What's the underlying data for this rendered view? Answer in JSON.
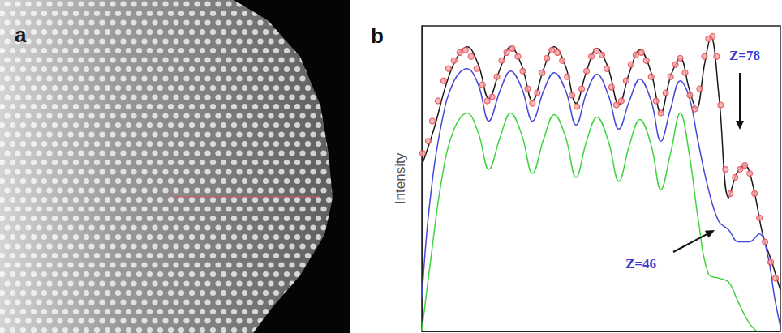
{
  "image_panel": {
    "label": "a"
  },
  "chart_data": {
    "type": "line",
    "title": "b",
    "y_label": "Intensity",
    "xlim": [
      0,
      444
    ],
    "ylim": [
      0,
      379
    ],
    "xticks": [],
    "yticks": [],
    "tick_labels": false,
    "grid": false,
    "annotations": [
      {
        "text": "Z=78"
      },
      {
        "text": "Z=46"
      }
    ],
    "series": [
      {
        "type": "line",
        "color": "#1a1a1a",
        "marker": "none",
        "line_style": "solid",
        "x": [
          0,
          15,
          30,
          43,
          56,
          70,
          83,
          97,
          110,
          124,
          137,
          151,
          164,
          178,
          191,
          204,
          217,
          231,
          244,
          257,
          270,
          284,
          296,
          308,
          320,
          331,
          340,
          350,
          358,
          368,
          380,
          390,
          400,
          410,
          422,
          435,
          444
        ],
        "values": [
          206,
          251,
          306,
          339,
          353,
          331,
          289,
          326,
          353,
          329,
          286,
          326,
          353,
          329,
          283,
          323,
          351,
          326,
          281,
          321,
          349,
          321,
          271,
          316,
          339,
          301,
          276,
          331,
          366,
          291,
          166,
          196,
          206,
          181,
          121,
          81,
          51
        ]
      },
      {
        "type": "line",
        "color": "#4646d8",
        "marker": "none",
        "line_style": "solid",
        "x": [
          0,
          10,
          25,
          40,
          56,
          70,
          83,
          97,
          110,
          124,
          137,
          151,
          164,
          178,
          191,
          204,
          217,
          231,
          244,
          257,
          270,
          284,
          296,
          308,
          320,
          331,
          342,
          355,
          368,
          380,
          392,
          405,
          418,
          428,
          437,
          444
        ],
        "values": [
          41,
          161,
          261,
          311,
          326,
          306,
          261,
          299,
          323,
          301,
          261,
          299,
          321,
          299,
          256,
          296,
          319,
          293,
          251,
          286,
          313,
          286,
          236,
          276,
          311,
          291,
          236,
          176,
          136,
          126,
          111,
          111,
          121,
          96,
          41,
          6
        ]
      },
      {
        "type": "line",
        "color": "#3fd43f",
        "marker": "none",
        "line_style": "solid",
        "x": [
          0,
          10,
          25,
          40,
          56,
          70,
          83,
          97,
          110,
          124,
          137,
          151,
          164,
          178,
          191,
          204,
          217,
          231,
          244,
          257,
          270,
          284,
          296,
          308,
          320,
          331,
          342,
          355,
          368,
          380,
          392,
          405,
          415
        ],
        "values": [
          1,
          81,
          191,
          251,
          271,
          246,
          201,
          241,
          271,
          243,
          196,
          239,
          269,
          241,
          191,
          236,
          266,
          236,
          186,
          231,
          263,
          231,
          176,
          221,
          271,
          221,
          141,
          71,
          66,
          61,
          36,
          11,
          0
        ]
      },
      {
        "type": "scatter",
        "color": "#e8404a",
        "marker": "circle",
        "x": [
          1,
          8,
          13,
          20,
          27,
          33,
          40,
          47,
          54,
          61,
          68,
          75,
          81,
          87,
          93,
          99,
          105,
          112,
          119,
          125,
          131,
          137,
          143,
          149,
          155,
          161,
          168,
          174,
          180,
          186,
          192,
          198,
          204,
          210,
          216,
          223,
          229,
          235,
          241,
          247,
          253,
          259,
          265,
          272,
          278,
          284,
          290,
          296,
          302,
          308,
          314,
          320,
          326,
          332,
          338,
          344,
          350,
          355,
          360,
          365,
          370,
          376,
          382,
          388,
          394,
          400,
          406,
          412,
          418,
          425,
          432,
          438
        ],
        "values": [
          221,
          236,
          261,
          286,
          311,
          326,
          336,
          346,
          349,
          341,
          326,
          306,
          286,
          291,
          316,
          336,
          346,
          351,
          341,
          323,
          301,
          283,
          296,
          321,
          339,
          349,
          346,
          336,
          316,
          293,
          279,
          301,
          323,
          341,
          348,
          343,
          326,
          303,
          281,
          286,
          311,
          331,
          343,
          346,
          336,
          316,
          286,
          271,
          296,
          316,
          331,
          339,
          321,
          293,
          276,
          301,
          341,
          363,
          366,
          341,
          281,
          201,
          171,
          191,
          201,
          206,
          196,
          171,
          141,
          111,
          86,
          66
        ]
      }
    ]
  }
}
